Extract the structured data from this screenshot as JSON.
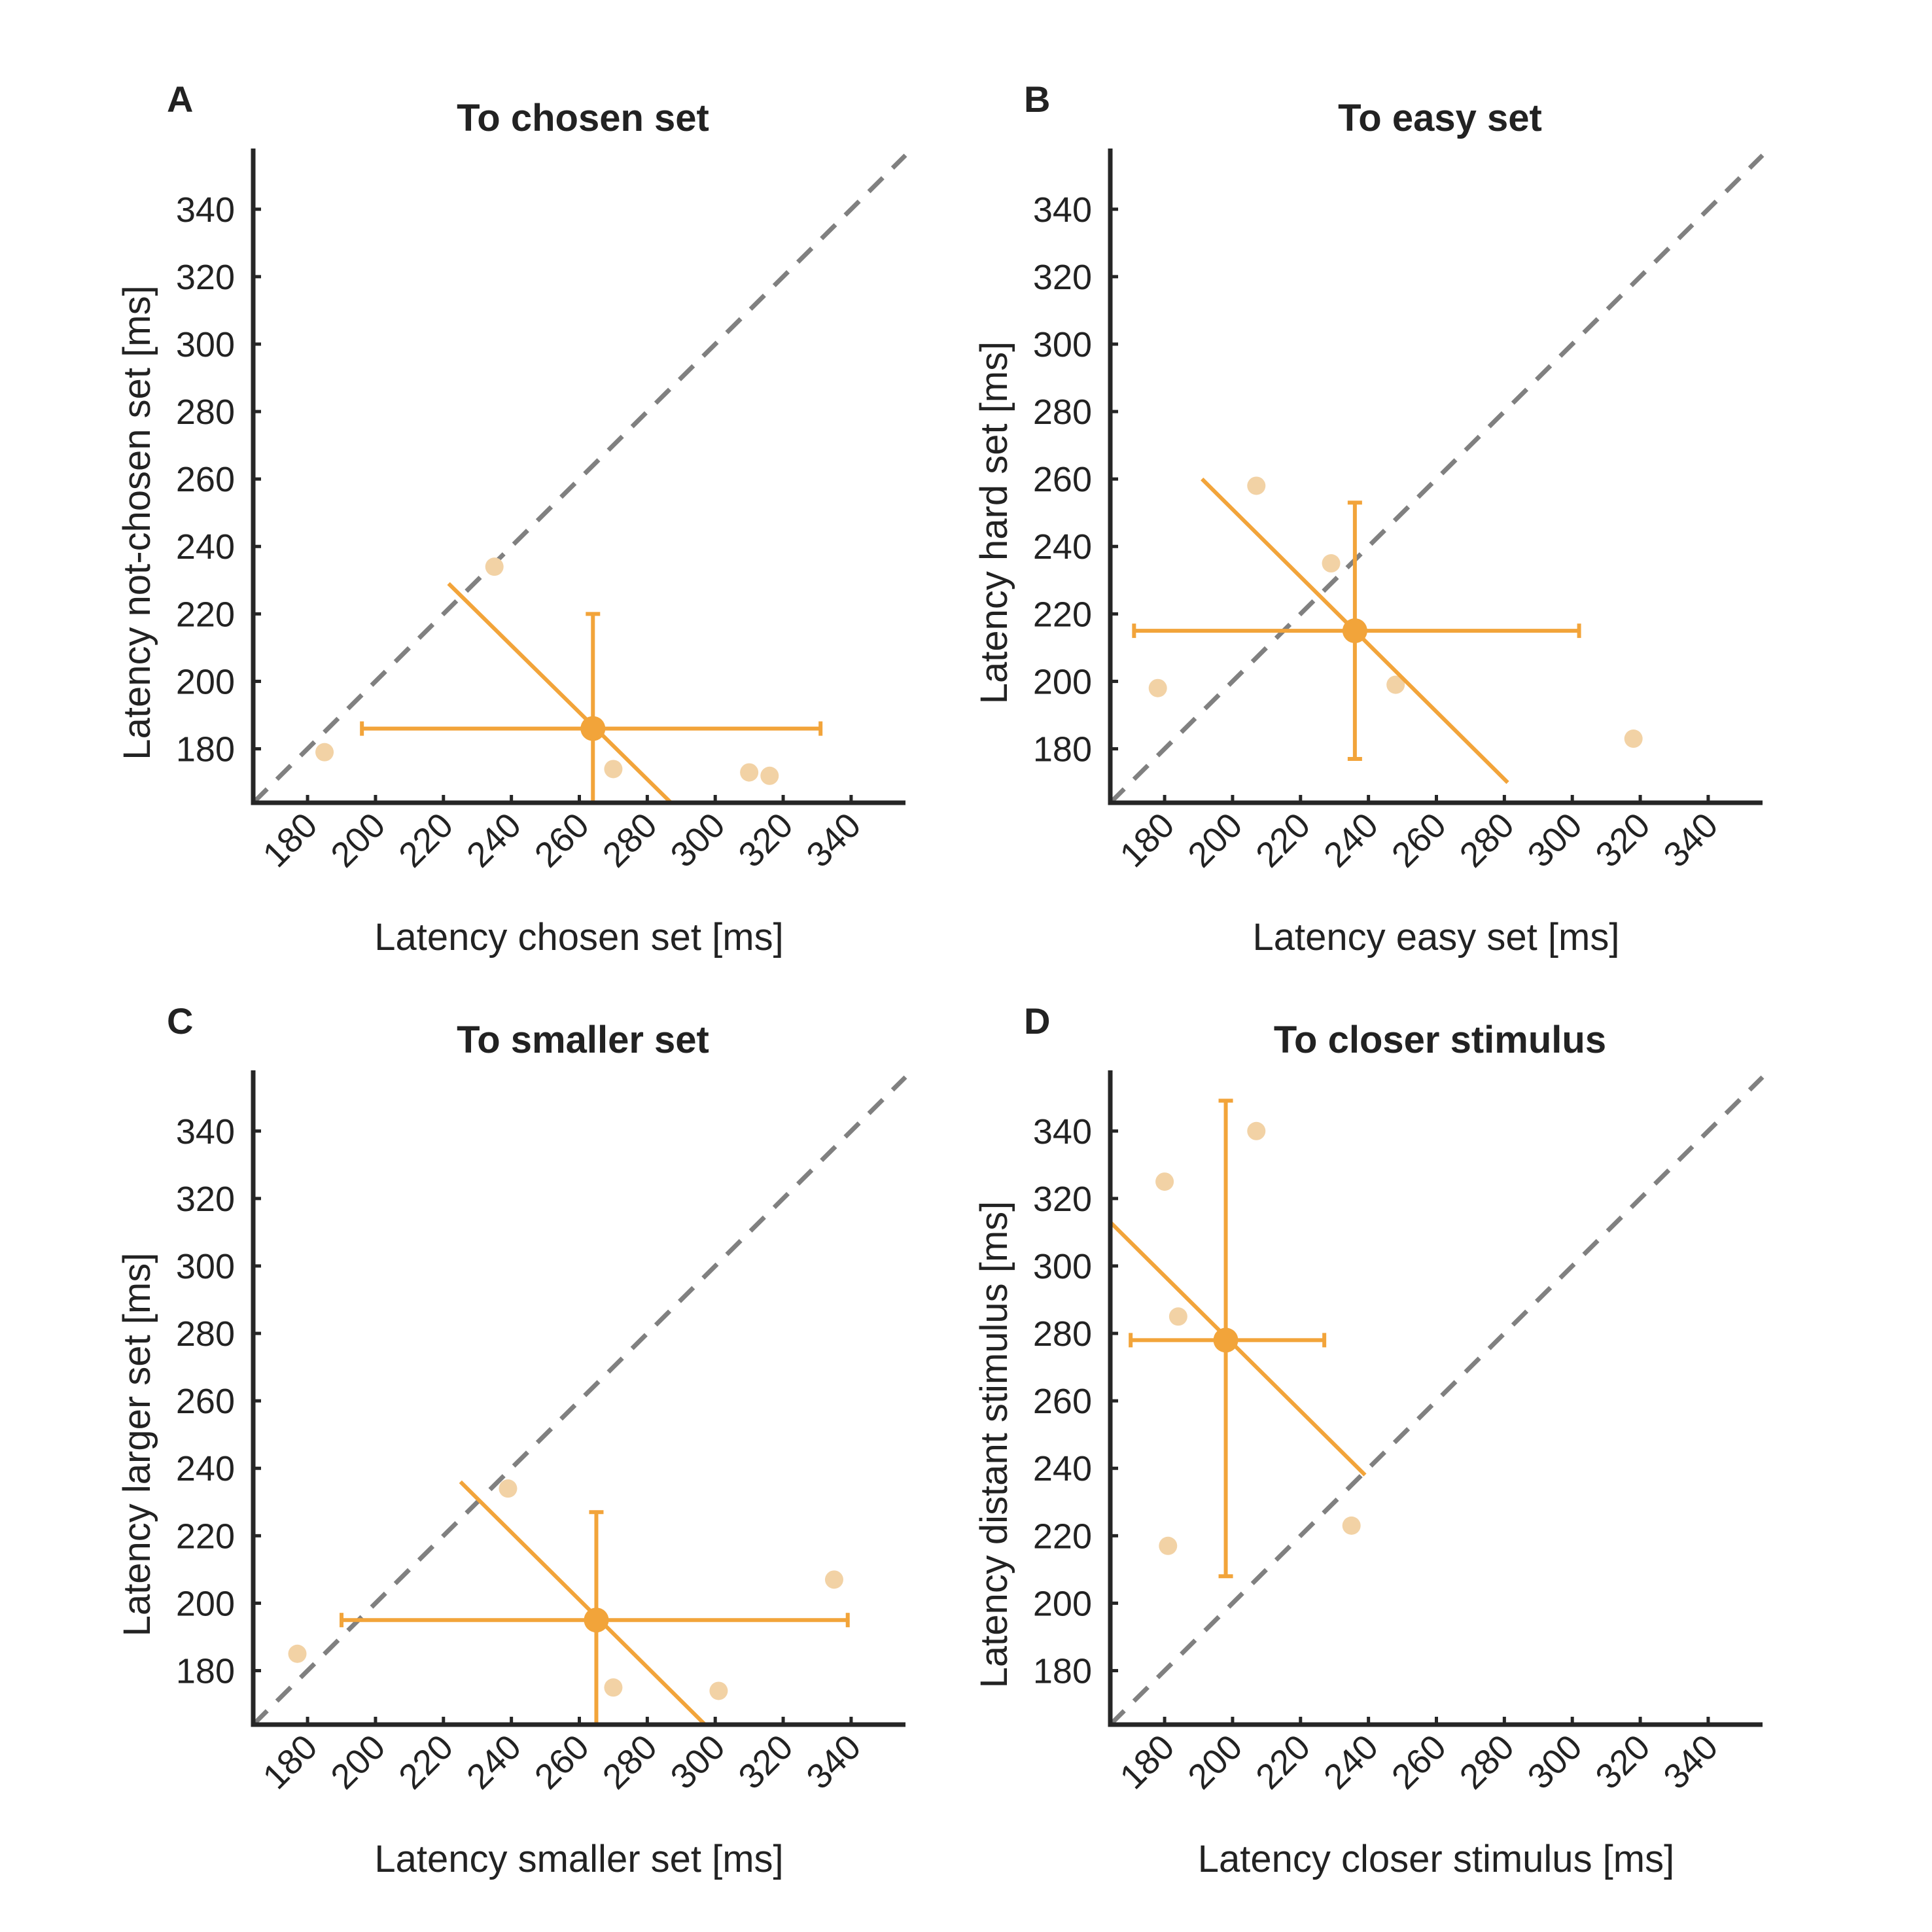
{
  "style": {
    "accent_color": "#F2A43A",
    "point_color": "#F2D2A5",
    "identity_color": "#808080",
    "axis_color": "#262626"
  },
  "chart_data": [
    {
      "type": "scatter",
      "panel_letter": "A",
      "title": "To chosen set",
      "xlabel": "Latency chosen set [ms]",
      "ylabel": "Latency not-chosen set [ms]",
      "xlim": [
        164,
        356
      ],
      "ylim": [
        164,
        358
      ],
      "xticks": [
        180,
        200,
        220,
        240,
        260,
        280,
        300,
        320,
        340
      ],
      "yticks": [
        180,
        200,
        220,
        240,
        260,
        280,
        300,
        320,
        340
      ],
      "identity_line": true,
      "points": [
        {
          "x": 185,
          "y": 179
        },
        {
          "x": 235,
          "y": 234
        },
        {
          "x": 270,
          "y": 174
        },
        {
          "x": 310,
          "y": 173
        },
        {
          "x": 316,
          "y": 172
        }
      ],
      "mean": {
        "x": 264,
        "y": 186
      },
      "x_error": [
        196,
        331
      ],
      "y_error": [
        164,
        220
      ],
      "regression_line": [
        [
          221.5,
          229
        ],
        [
          287,
          164
        ]
      ]
    },
    {
      "type": "scatter",
      "panel_letter": "B",
      "title": "To easy set",
      "xlabel": "Latency easy set [ms]",
      "ylabel": "Latency hard set [ms]",
      "xlim": [
        164,
        356
      ],
      "ylim": [
        164,
        358
      ],
      "xticks": [
        180,
        200,
        220,
        240,
        260,
        280,
        300,
        320,
        340
      ],
      "yticks": [
        180,
        200,
        220,
        240,
        260,
        280,
        300,
        320,
        340
      ],
      "identity_line": true,
      "points": [
        {
          "x": 178,
          "y": 198
        },
        {
          "x": 207,
          "y": 258
        },
        {
          "x": 229,
          "y": 235
        },
        {
          "x": 248,
          "y": 199
        },
        {
          "x": 318,
          "y": 183
        }
      ],
      "mean": {
        "x": 236,
        "y": 215
      },
      "x_error": [
        171,
        302
      ],
      "y_error": [
        177,
        253
      ],
      "regression_line": [
        [
          191,
          260
        ],
        [
          281,
          170
        ]
      ]
    },
    {
      "type": "scatter",
      "panel_letter": "C",
      "title": "To smaller set",
      "xlabel": "Latency smaller set [ms]",
      "ylabel": "Latency larger set [ms]",
      "xlim": [
        164,
        356
      ],
      "ylim": [
        164,
        358
      ],
      "xticks": [
        180,
        200,
        220,
        240,
        260,
        280,
        300,
        320,
        340
      ],
      "yticks": [
        180,
        200,
        220,
        240,
        260,
        280,
        300,
        320,
        340
      ],
      "identity_line": true,
      "points": [
        {
          "x": 177,
          "y": 185
        },
        {
          "x": 239,
          "y": 234
        },
        {
          "x": 270,
          "y": 175
        },
        {
          "x": 301,
          "y": 174
        },
        {
          "x": 335,
          "y": 207
        }
      ],
      "mean": {
        "x": 265,
        "y": 195
      },
      "x_error": [
        190,
        339
      ],
      "y_error": [
        164,
        227
      ],
      "regression_line": [
        [
          225,
          236
        ],
        [
          297,
          164
        ]
      ]
    },
    {
      "type": "scatter",
      "panel_letter": "D",
      "title": "To closer stimulus",
      "xlabel": "Latency closer stimulus [ms]",
      "ylabel": "Latency distant stimulus [ms]",
      "xlim": [
        164,
        356
      ],
      "ylim": [
        164,
        358
      ],
      "xticks": [
        180,
        200,
        220,
        240,
        260,
        280,
        300,
        320,
        340
      ],
      "yticks": [
        180,
        200,
        220,
        240,
        260,
        280,
        300,
        320,
        340
      ],
      "identity_line": true,
      "points": [
        {
          "x": 180,
          "y": 325
        },
        {
          "x": 184,
          "y": 285
        },
        {
          "x": 181,
          "y": 217
        },
        {
          "x": 207,
          "y": 340
        },
        {
          "x": 235,
          "y": 223
        }
      ],
      "mean": {
        "x": 198,
        "y": 278
      },
      "x_error": [
        170,
        227
      ],
      "y_error": [
        208,
        349
      ],
      "regression_line": [
        [
          164,
          313
        ],
        [
          239,
          238
        ]
      ]
    }
  ]
}
